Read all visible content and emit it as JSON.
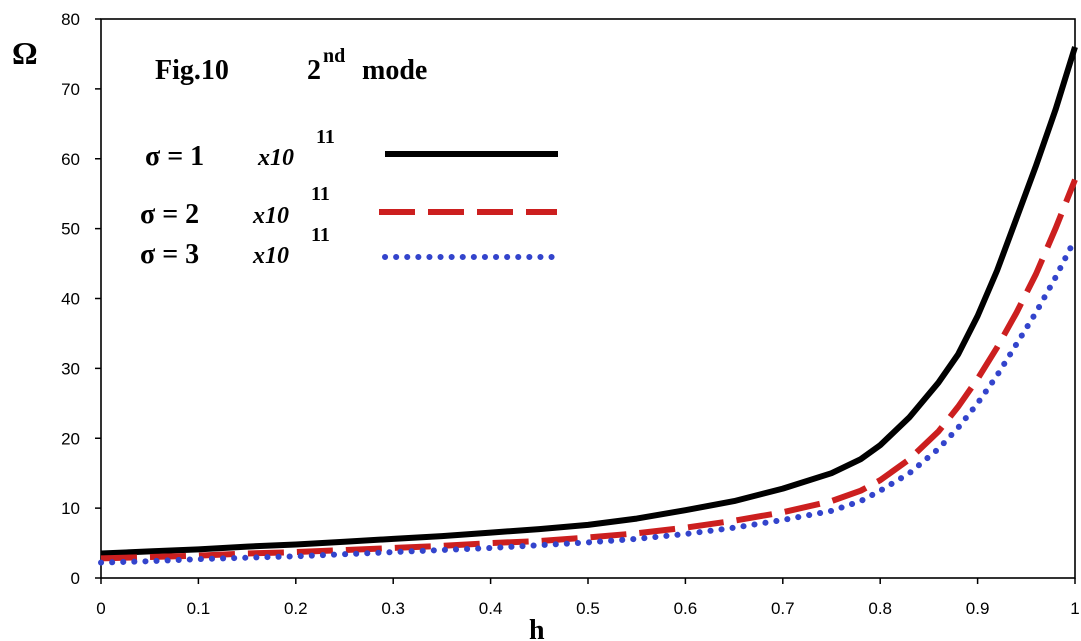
{
  "chart_data": {
    "type": "line",
    "title": "Fig.10",
    "title_mode_number": "2",
    "title_mode_sup": "nd",
    "title_mode_word": "mode",
    "xlabel": "h",
    "ylabel": "Ω",
    "xlim": [
      0,
      1
    ],
    "ylim": [
      0,
      80
    ],
    "x_ticks": [
      "0",
      "0.1",
      "0.2",
      "0.3",
      "0.4",
      "0.5",
      "0.6",
      "0.7",
      "0.8",
      "0.9",
      "1"
    ],
    "y_ticks": [
      "0",
      "10",
      "20",
      "30",
      "40",
      "50",
      "60",
      "70",
      "80"
    ],
    "grid": false,
    "legend_position": "top-left",
    "series": [
      {
        "name": "σ = 1",
        "name_mult": "x10",
        "name_exp": "11",
        "color": "#000000",
        "style": "solid",
        "x": [
          0,
          0.05,
          0.1,
          0.15,
          0.2,
          0.25,
          0.3,
          0.35,
          0.4,
          0.45,
          0.5,
          0.55,
          0.6,
          0.65,
          0.7,
          0.75,
          0.78,
          0.8,
          0.83,
          0.86,
          0.88,
          0.9,
          0.92,
          0.94,
          0.96,
          0.98,
          1.0
        ],
        "y": [
          3.5,
          3.8,
          4.1,
          4.5,
          4.8,
          5.2,
          5.6,
          6.0,
          6.5,
          7.0,
          7.6,
          8.5,
          9.7,
          11.0,
          12.8,
          15.0,
          17.0,
          19.0,
          23.0,
          28.0,
          32.0,
          37.5,
          44.0,
          51.5,
          59.0,
          67.0,
          76.0
        ]
      },
      {
        "name": "σ = 2",
        "name_mult": "x10",
        "name_exp": "11",
        "color": "#cc1f1f",
        "style": "dashed",
        "x": [
          0,
          0.05,
          0.1,
          0.15,
          0.2,
          0.25,
          0.3,
          0.35,
          0.4,
          0.45,
          0.5,
          0.55,
          0.6,
          0.65,
          0.7,
          0.75,
          0.78,
          0.8,
          0.83,
          0.86,
          0.88,
          0.9,
          0.92,
          0.94,
          0.96,
          0.98,
          1.0
        ],
        "y": [
          2.8,
          3.0,
          3.2,
          3.5,
          3.7,
          4.0,
          4.3,
          4.6,
          5.0,
          5.3,
          5.8,
          6.4,
          7.2,
          8.2,
          9.4,
          11.0,
          12.5,
          14.0,
          17.0,
          21.0,
          24.5,
          28.5,
          33.0,
          38.0,
          43.5,
          50.0,
          57.0
        ]
      },
      {
        "name": "σ = 3",
        "name_mult": "x10",
        "name_exp": "11",
        "color": "#3344cc",
        "style": "dotted",
        "x": [
          0,
          0.05,
          0.1,
          0.15,
          0.2,
          0.25,
          0.3,
          0.35,
          0.4,
          0.45,
          0.5,
          0.55,
          0.6,
          0.65,
          0.7,
          0.75,
          0.78,
          0.8,
          0.83,
          0.86,
          0.88,
          0.9,
          0.92,
          0.94,
          0.96,
          0.98,
          1.0
        ],
        "y": [
          2.2,
          2.4,
          2.7,
          2.9,
          3.1,
          3.4,
          3.7,
          4.0,
          4.3,
          4.7,
          5.1,
          5.6,
          6.3,
          7.2,
          8.3,
          9.6,
          11.0,
          12.5,
          15.0,
          18.5,
          21.5,
          25.0,
          29.0,
          33.5,
          38.0,
          43.0,
          48.5
        ]
      }
    ]
  }
}
